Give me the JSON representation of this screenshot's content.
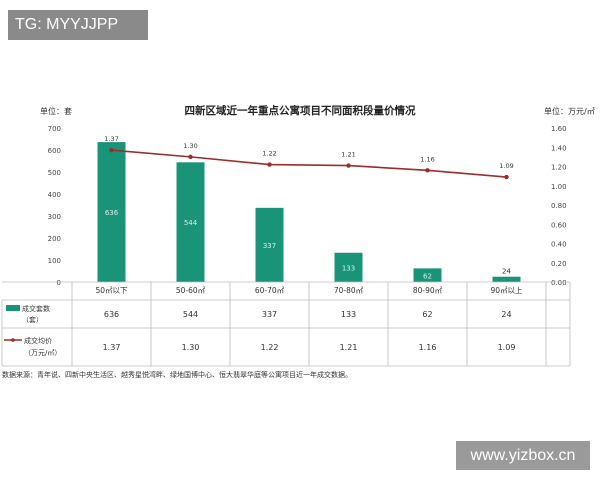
{
  "watermarks": {
    "top": "TG: MYYJJPP",
    "bottom": "www.yizbox.cn"
  },
  "chart_data": {
    "type": "bar",
    "title": "四新区域近一年重点公寓项目不同面积段量价情况",
    "unit_left": "单位：套",
    "unit_right": "单位：万元/㎡",
    "categories": [
      "50㎡以下",
      "50-60㎡",
      "60-70㎡",
      "70-80㎡",
      "80-90㎡",
      "90㎡以上"
    ],
    "series": [
      {
        "name": "成交套数（套）",
        "type": "bar",
        "axis": "left",
        "color": "#1a9478",
        "values": [
          636,
          544,
          337,
          133,
          62,
          24
        ]
      },
      {
        "name": "成交均价（万元/㎡）",
        "type": "line",
        "axis": "right",
        "color": "#9b2c2c",
        "values": [
          1.37,
          1.3,
          1.22,
          1.21,
          1.16,
          1.09
        ]
      }
    ],
    "y_left": {
      "min": 0,
      "max": 700,
      "ticks": [
        "0",
        "100",
        "200",
        "300",
        "400",
        "500",
        "600",
        "700"
      ]
    },
    "y_right": {
      "min": 0,
      "max": 1.6,
      "ticks": [
        "0.00",
        "0.20",
        "0.40",
        "0.60",
        "0.80",
        "1.00",
        "1.20",
        "1.40",
        "1.60"
      ]
    },
    "table": {
      "rows": [
        {
          "label": [
            "成交套数",
            "（套）"
          ],
          "values": [
            "636",
            "544",
            "337",
            "133",
            "62",
            "24"
          ]
        },
        {
          "label": [
            "成交均价",
            "（万元/㎡）"
          ],
          "values": [
            "1.37",
            "1.30",
            "1.22",
            "1.21",
            "1.16",
            "1.09"
          ]
        }
      ]
    },
    "bar_labels": [
      "636",
      "544",
      "337",
      "133",
      "62",
      "24"
    ],
    "line_labels": [
      "1.37",
      "1.30",
      "1.22",
      "1.21",
      "1.16",
      "1.09"
    ],
    "source": "数据来源：青年说、四新中央生活区、越秀星悦湾畔、绿地国博中心、恒大翡翠华庭等公寓项目近一年成交数据。",
    "grid": false
  }
}
